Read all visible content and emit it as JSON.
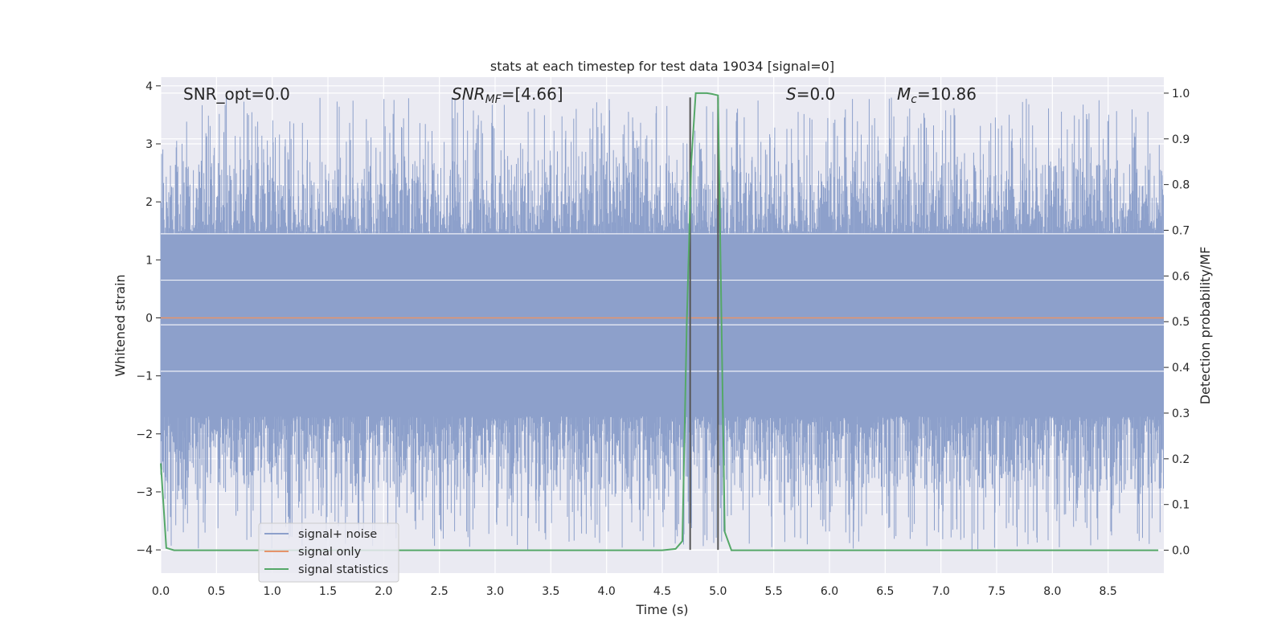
{
  "chart_data": {
    "type": "line",
    "title": "stats at each timestep for test data 19034 [signal=0]",
    "xlabel": "Time (s)",
    "ylabel": "Whitened strain",
    "y2label": "Detection probability/MF",
    "xlim": [
      0.0,
      9.0
    ],
    "ylim": [
      -4.4,
      4.15
    ],
    "y2lim": [
      -0.05,
      1.035
    ],
    "x_ticks": [
      "0.0",
      "0.5",
      "1.0",
      "1.5",
      "2.0",
      "2.5",
      "3.0",
      "3.5",
      "4.0",
      "4.5",
      "5.0",
      "5.5",
      "6.0",
      "6.5",
      "7.0",
      "7.5",
      "8.0",
      "8.5"
    ],
    "y_ticks": [
      "4",
      "3",
      "2",
      "1",
      "0",
      "−1",
      "−2",
      "−3",
      "−4"
    ],
    "y2_ticks": [
      "1.0",
      "0.9",
      "0.8",
      "0.7",
      "0.6",
      "0.5",
      "0.4",
      "0.3",
      "0.2",
      "0.1",
      "0.0"
    ],
    "grid": true,
    "legend_placement": "lower-left",
    "annotations": {
      "snr_opt": "SNR_opt=0.0",
      "snr_mf_main": "SNR",
      "snr_mf_sub": "MF",
      "snr_mf_value": "=[4.66]",
      "s_main": "S",
      "s_value": "=0.0",
      "mc_main": "M",
      "mc_sub": "c",
      "mc_value": "=10.86"
    },
    "series": [
      {
        "name": "signal+ noise",
        "color": "#8da0cb",
        "description_values": {
          "band_low": -1.7,
          "band_high": 1.45,
          "peak_max": 3.8,
          "peak_min": -4.0
        }
      },
      {
        "name": "signal only",
        "color": "#e5936b",
        "x": [
          0.0,
          9.0
        ],
        "y": [
          0.0,
          0.0
        ]
      },
      {
        "name": "signal statistics",
        "color": "#55a868",
        "axis": "right",
        "x": [
          0.0,
          0.05,
          0.12,
          0.5,
          1.0,
          2.0,
          3.0,
          4.0,
          4.5,
          4.62,
          4.68,
          4.72,
          4.76,
          4.8,
          4.85,
          4.9,
          4.95,
          5.0,
          5.06,
          5.12,
          5.5,
          6.0,
          7.0,
          8.0,
          8.95
        ],
        "y": [
          0.19,
          0.005,
          0.0,
          0.0,
          0.0,
          0.0,
          0.0,
          0.0,
          0.0,
          0.003,
          0.02,
          0.5,
          0.85,
          1.0,
          1.0,
          1.0,
          0.998,
          0.995,
          0.04,
          0.0,
          0.0,
          0.0,
          0.0,
          0.0,
          0.0
        ]
      }
    ],
    "vertical_markers": [
      {
        "x": 4.75,
        "y_top": 3.8,
        "y_bottom": -4.0,
        "color": "#555555"
      },
      {
        "x": 5.0,
        "y_top": 3.8,
        "y_bottom": -4.0,
        "color": "#555555"
      }
    ]
  }
}
